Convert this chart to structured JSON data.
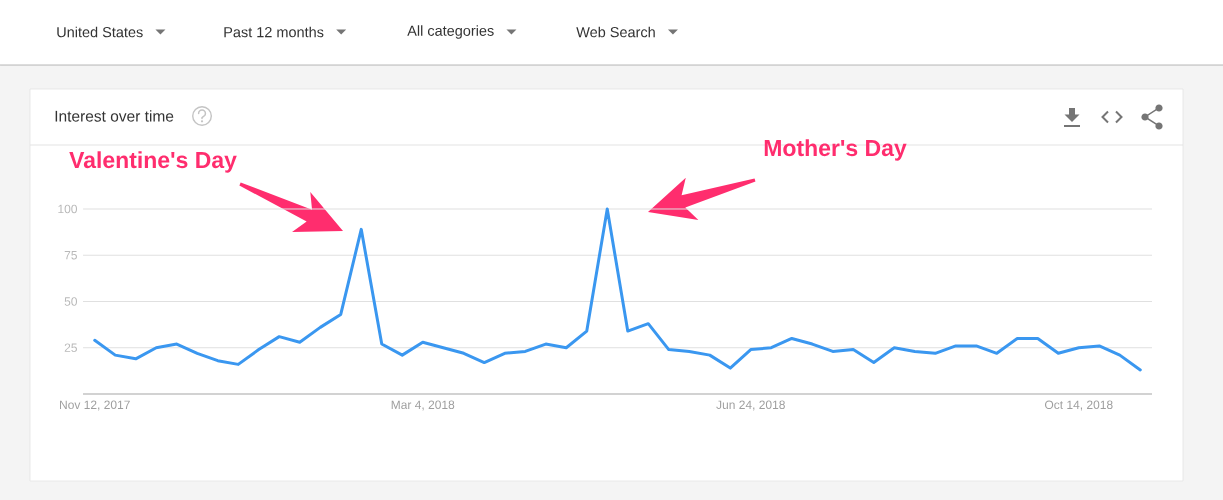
{
  "chart_data": {
    "type": "line",
    "title": "Interest over time",
    "annotations": [
      "United States",
      "Past 12 months",
      "All categories",
      "Web Search",
      "Valentine's Day",
      "Mother's Day"
    ],
    "x": [
      "2017-11-12",
      "2017-11-19",
      "2017-11-26",
      "2017-12-03",
      "2017-12-10",
      "2017-12-17",
      "2017-12-24",
      "2017-12-31",
      "2018-01-07",
      "2018-01-14",
      "2018-01-21",
      "2018-01-28",
      "2018-02-04",
      "2018-02-11",
      "2018-02-18",
      "2018-02-25",
      "2018-03-04",
      "2018-03-11",
      "2018-03-18",
      "2018-03-25",
      "2018-04-01",
      "2018-04-08",
      "2018-04-15",
      "2018-04-22",
      "2018-04-29",
      "2018-05-06",
      "2018-05-13",
      "2018-05-20",
      "2018-05-27",
      "2018-06-03",
      "2018-06-10",
      "2018-06-17",
      "2018-06-24",
      "2018-07-01",
      "2018-07-08",
      "2018-07-15",
      "2018-07-22",
      "2018-07-29",
      "2018-08-05",
      "2018-08-12",
      "2018-08-19",
      "2018-08-26",
      "2018-09-02",
      "2018-09-09",
      "2018-09-16",
      "2018-09-23",
      "2018-09-30",
      "2018-10-07",
      "2018-10-14",
      "2018-10-21",
      "2018-10-28",
      "2018-11-04"
    ],
    "values": [
      29,
      21,
      19,
      25,
      27,
      22,
      18,
      16,
      24,
      31,
      28,
      36,
      43,
      89,
      27,
      21,
      28,
      25,
      22,
      17,
      22,
      23,
      27,
      25,
      34,
      100,
      34,
      38,
      24,
      23,
      21,
      14,
      24,
      25,
      30,
      27,
      23,
      24,
      17,
      25,
      23,
      22,
      26,
      26,
      22,
      30,
      30,
      22,
      25,
      26,
      21,
      13
    ],
    "color": "#3a97f0",
    "xlim": [
      "2017-11-08",
      "2018-11-08"
    ],
    "ylim": [
      0,
      100
    ],
    "xticks": [
      {
        "value": "2017-11-12",
        "label": "Nov 12, 2017"
      },
      {
        "value": "2018-03-04",
        "label": "Mar 4, 2018"
      },
      {
        "value": "2018-06-24",
        "label": "Jun 24, 2018"
      },
      {
        "value": "2018-10-14",
        "label": "Oct 14, 2018"
      }
    ],
    "yticks": [
      25,
      50,
      75,
      100
    ],
    "grid": "y",
    "line_style": "solid"
  }
}
